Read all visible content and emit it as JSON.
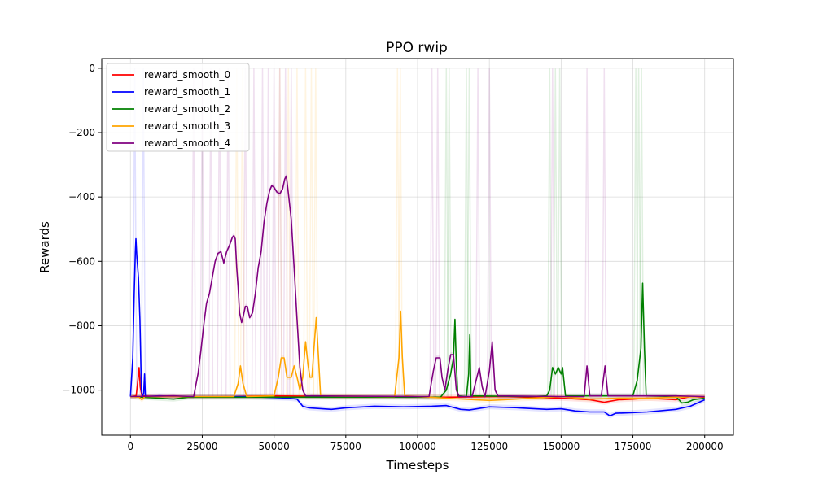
{
  "chart_data": {
    "type": "line",
    "title": "PPO rwip",
    "xlabel": "Timesteps",
    "ylabel": "Rewards",
    "xlim": [
      -10000,
      210000
    ],
    "ylim": [
      -1140,
      30
    ],
    "xticks": [
      0,
      25000,
      50000,
      75000,
      100000,
      125000,
      150000,
      175000,
      200000
    ],
    "xtick_labels": [
      "0",
      "25000",
      "50000",
      "75000",
      "100000",
      "125000",
      "150000",
      "175000",
      "200000"
    ],
    "yticks": [
      -1000,
      -800,
      -600,
      -400,
      -200,
      0
    ],
    "ytick_labels": [
      "−1000",
      "−800",
      "−600",
      "−400",
      "−200",
      "0"
    ],
    "grid": true,
    "legend_position": "upper-left",
    "series": [
      {
        "name": "reward_smooth_0",
        "color": "#ff0000",
        "points": [
          [
            0,
            -1020
          ],
          [
            2000,
            -1018
          ],
          [
            2600,
            -970
          ],
          [
            3000,
            -930
          ],
          [
            3400,
            -990
          ],
          [
            4000,
            -1018
          ],
          [
            10000,
            -1020
          ],
          [
            30000,
            -1020
          ],
          [
            50000,
            -1018
          ],
          [
            80000,
            -1020
          ],
          [
            110000,
            -1022
          ],
          [
            130000,
            -1020
          ],
          [
            150000,
            -1025
          ],
          [
            160000,
            -1030
          ],
          [
            165000,
            -1038
          ],
          [
            170000,
            -1030
          ],
          [
            175000,
            -1028
          ],
          [
            180000,
            -1025
          ],
          [
            190000,
            -1030
          ],
          [
            195000,
            -1020
          ],
          [
            200000,
            -1022
          ]
        ],
        "raw_spikes": [
          [
            2700,
            -930
          ]
        ]
      },
      {
        "name": "reward_smooth_1",
        "color": "#0000ff",
        "points": [
          [
            0,
            -1020
          ],
          [
            800,
            -900
          ],
          [
            1300,
            -700
          ],
          [
            1700,
            -570
          ],
          [
            1900,
            -530
          ],
          [
            2200,
            -580
          ],
          [
            2800,
            -650
          ],
          [
            3300,
            -780
          ],
          [
            3800,
            -1000
          ],
          [
            4200,
            -1020
          ],
          [
            4600,
            -1010
          ],
          [
            4900,
            -950
          ],
          [
            5200,
            -1020
          ],
          [
            10000,
            -1018
          ],
          [
            20000,
            -1020
          ],
          [
            40000,
            -1020
          ],
          [
            55000,
            -1025
          ],
          [
            58000,
            -1028
          ],
          [
            60000,
            -1050
          ],
          [
            62000,
            -1055
          ],
          [
            70000,
            -1060
          ],
          [
            75000,
            -1055
          ],
          [
            85000,
            -1050
          ],
          [
            95000,
            -1052
          ],
          [
            105000,
            -1050
          ],
          [
            110000,
            -1048
          ],
          [
            115000,
            -1060
          ],
          [
            118000,
            -1062
          ],
          [
            125000,
            -1052
          ],
          [
            135000,
            -1055
          ],
          [
            145000,
            -1060
          ],
          [
            150000,
            -1058
          ],
          [
            155000,
            -1065
          ],
          [
            160000,
            -1068
          ],
          [
            165000,
            -1068
          ],
          [
            167000,
            -1080
          ],
          [
            169000,
            -1072
          ],
          [
            175000,
            -1070
          ],
          [
            180000,
            -1068
          ],
          [
            190000,
            -1060
          ],
          [
            195000,
            -1050
          ],
          [
            200000,
            -1030
          ]
        ],
        "raw_spikes": [
          [
            1500,
            -1
          ],
          [
            4500,
            -1
          ]
        ]
      },
      {
        "name": "reward_smooth_2",
        "color": "#008000",
        "points": [
          [
            0,
            -1020
          ],
          [
            10000,
            -1025
          ],
          [
            15000,
            -1028
          ],
          [
            20000,
            -1022
          ],
          [
            50000,
            -1022
          ],
          [
            100000,
            -1022
          ],
          [
            108000,
            -1022
          ],
          [
            110000,
            -1000
          ],
          [
            111500,
            -950
          ],
          [
            112500,
            -900
          ],
          [
            113000,
            -780
          ],
          [
            113400,
            -900
          ],
          [
            114000,
            -1018
          ],
          [
            117000,
            -1020
          ],
          [
            117800,
            -950
          ],
          [
            118200,
            -828
          ],
          [
            118600,
            -1018
          ],
          [
            140000,
            -1020
          ],
          [
            145000,
            -1018
          ],
          [
            146000,
            -1000
          ],
          [
            147000,
            -930
          ],
          [
            148000,
            -950
          ],
          [
            149000,
            -930
          ],
          [
            150000,
            -950
          ],
          [
            150500,
            -930
          ],
          [
            151500,
            -1018
          ],
          [
            175000,
            -1018
          ],
          [
            176500,
            -970
          ],
          [
            177800,
            -870
          ],
          [
            178400,
            -668
          ],
          [
            179000,
            -870
          ],
          [
            179600,
            -1018
          ],
          [
            190000,
            -1020
          ],
          [
            192000,
            -1040
          ],
          [
            194000,
            -1038
          ],
          [
            196000,
            -1030
          ],
          [
            200000,
            -1025
          ]
        ],
        "raw_spikes": [
          [
            110000,
            -1
          ],
          [
            111000,
            -1
          ],
          [
            117000,
            -1
          ],
          [
            118000,
            -1
          ],
          [
            146000,
            -1
          ],
          [
            148000,
            -1
          ],
          [
            149500,
            -1
          ],
          [
            176000,
            -1
          ],
          [
            177000,
            -1
          ],
          [
            178000,
            -1
          ]
        ]
      },
      {
        "name": "reward_smooth_3",
        "color": "#ffa500",
        "points": [
          [
            0,
            -1020
          ],
          [
            3000,
            -1022
          ],
          [
            4000,
            -1030
          ],
          [
            5000,
            -1020
          ],
          [
            30000,
            -1020
          ],
          [
            36000,
            -1020
          ],
          [
            37500,
            -980
          ],
          [
            38300,
            -925
          ],
          [
            39200,
            -980
          ],
          [
            40500,
            -1020
          ],
          [
            50000,
            -1018
          ],
          [
            51500,
            -960
          ],
          [
            52500,
            -900
          ],
          [
            53500,
            -900
          ],
          [
            54500,
            -960
          ],
          [
            56000,
            -960
          ],
          [
            57000,
            -925
          ],
          [
            58000,
            -960
          ],
          [
            59000,
            -1000
          ],
          [
            60000,
            -960
          ],
          [
            61000,
            -850
          ],
          [
            61800,
            -920
          ],
          [
            62500,
            -960
          ],
          [
            63200,
            -960
          ],
          [
            64000,
            -860
          ],
          [
            64700,
            -775
          ],
          [
            65500,
            -900
          ],
          [
            66200,
            -1018
          ],
          [
            90000,
            -1020
          ],
          [
            92000,
            -1020
          ],
          [
            93500,
            -900
          ],
          [
            94100,
            -755
          ],
          [
            94700,
            -900
          ],
          [
            95500,
            -1018
          ],
          [
            100000,
            -1020
          ],
          [
            110000,
            -1025
          ],
          [
            120000,
            -1030
          ],
          [
            125000,
            -1032
          ],
          [
            130000,
            -1030
          ],
          [
            140000,
            -1025
          ],
          [
            150000,
            -1020
          ],
          [
            160000,
            -1028
          ],
          [
            170000,
            -1025
          ],
          [
            180000,
            -1025
          ],
          [
            190000,
            -1022
          ],
          [
            200000,
            -1020
          ]
        ],
        "raw_spikes": [
          [
            37000,
            -1
          ],
          [
            39000,
            -1
          ],
          [
            52000,
            -1
          ],
          [
            55000,
            -1
          ],
          [
            58000,
            -1
          ],
          [
            61000,
            -1
          ],
          [
            63000,
            -1
          ],
          [
            64500,
            -1
          ],
          [
            93000,
            -1
          ],
          [
            94000,
            -1
          ]
        ]
      },
      {
        "name": "reward_smooth_4",
        "color": "#800080",
        "points": [
          [
            0,
            -1020
          ],
          [
            15000,
            -1018
          ],
          [
            22000,
            -1020
          ],
          [
            23500,
            -950
          ],
          [
            24500,
            -880
          ],
          [
            25500,
            -800
          ],
          [
            26500,
            -730
          ],
          [
            27500,
            -700
          ],
          [
            28500,
            -650
          ],
          [
            29500,
            -600
          ],
          [
            30500,
            -575
          ],
          [
            31500,
            -570
          ],
          [
            32500,
            -605
          ],
          [
            33500,
            -570
          ],
          [
            34500,
            -550
          ],
          [
            35500,
            -525
          ],
          [
            36000,
            -520
          ],
          [
            36500,
            -530
          ],
          [
            37000,
            -620
          ],
          [
            37500,
            -680
          ],
          [
            38000,
            -760
          ],
          [
            38700,
            -790
          ],
          [
            39300,
            -770
          ],
          [
            40000,
            -740
          ],
          [
            40700,
            -740
          ],
          [
            41500,
            -775
          ],
          [
            42500,
            -760
          ],
          [
            43500,
            -700
          ],
          [
            44500,
            -620
          ],
          [
            45500,
            -570
          ],
          [
            46500,
            -480
          ],
          [
            47500,
            -420
          ],
          [
            48500,
            -380
          ],
          [
            49200,
            -365
          ],
          [
            50000,
            -370
          ],
          [
            51000,
            -385
          ],
          [
            52000,
            -390
          ],
          [
            53000,
            -375
          ],
          [
            53700,
            -345
          ],
          [
            54300,
            -335
          ],
          [
            55000,
            -390
          ],
          [
            56000,
            -470
          ],
          [
            57000,
            -620
          ],
          [
            58000,
            -780
          ],
          [
            59000,
            -930
          ],
          [
            60000,
            -1000
          ],
          [
            61000,
            -1018
          ],
          [
            100000,
            -1020
          ],
          [
            104000,
            -1020
          ],
          [
            105500,
            -940
          ],
          [
            106500,
            -900
          ],
          [
            107800,
            -900
          ],
          [
            108500,
            -960
          ],
          [
            109500,
            -1000
          ],
          [
            110500,
            -940
          ],
          [
            111500,
            -890
          ],
          [
            112500,
            -890
          ],
          [
            113500,
            -1000
          ],
          [
            114500,
            -1020
          ],
          [
            119000,
            -1020
          ],
          [
            121500,
            -930
          ],
          [
            122500,
            -990
          ],
          [
            123500,
            -1020
          ],
          [
            125000,
            -940
          ],
          [
            126000,
            -850
          ],
          [
            127000,
            -1000
          ],
          [
            128000,
            -1018
          ],
          [
            150000,
            -1020
          ],
          [
            158000,
            -1020
          ],
          [
            159000,
            -925
          ],
          [
            160000,
            -1018
          ],
          [
            164000,
            -1018
          ],
          [
            165300,
            -925
          ],
          [
            166300,
            -1018
          ],
          [
            180000,
            -1018
          ],
          [
            190000,
            -1018
          ],
          [
            200000,
            -1020
          ]
        ],
        "raw_spikes": [
          [
            22000,
            -1
          ],
          [
            25000,
            -1
          ],
          [
            28000,
            -1
          ],
          [
            31000,
            -1
          ],
          [
            34000,
            -1
          ],
          [
            40000,
            -1
          ],
          [
            43000,
            -1
          ],
          [
            46000,
            -1
          ],
          [
            48000,
            -1
          ],
          [
            50000,
            -1
          ],
          [
            52000,
            -1
          ],
          [
            54000,
            -1
          ],
          [
            56000,
            -1
          ],
          [
            105000,
            -1
          ],
          [
            107000,
            -1
          ],
          [
            121000,
            -1
          ],
          [
            125000,
            -1
          ],
          [
            147000,
            -1
          ],
          [
            159000,
            -1
          ],
          [
            165000,
            -1
          ]
        ]
      }
    ]
  }
}
